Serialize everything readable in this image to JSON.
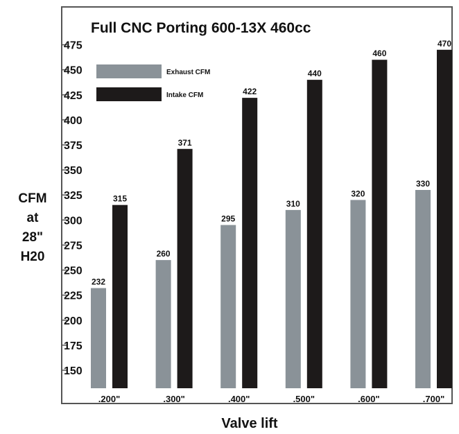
{
  "chart_data": {
    "type": "bar",
    "title": "Full CNC Porting 600-13X 460cc",
    "xlabel": "Valve lift",
    "ylabel_lines": [
      "CFM",
      "at",
      "28\"",
      "H20"
    ],
    "categories": [
      ".200\"",
      ".300\"",
      ".400\"",
      ".500\"",
      ".600\"",
      ".700\""
    ],
    "series": [
      {
        "name": "Exhaust CFM",
        "values": [
          232,
          260,
          295,
          310,
          320,
          330
        ],
        "color": "#8a9298"
      },
      {
        "name": "Intake CFM",
        "values": [
          315,
          371,
          422,
          440,
          460,
          470
        ],
        "color": "#1d1a1a"
      }
    ],
    "yticks": [
      150,
      175,
      200,
      225,
      250,
      275,
      300,
      325,
      350,
      375,
      400,
      425,
      450,
      475
    ],
    "ylim": [
      132,
      483
    ],
    "grid": false,
    "legend": "top-left"
  }
}
